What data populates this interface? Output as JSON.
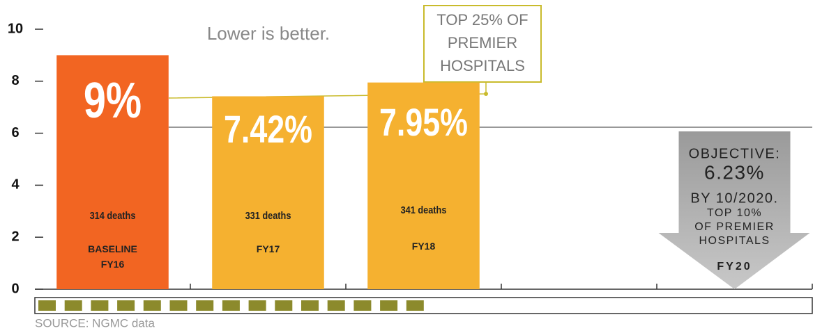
{
  "chart_data": {
    "type": "bar",
    "annotation": "Lower is better.",
    "categories": [
      "BASELINE FY16",
      "FY17",
      "FY18",
      null,
      "FY20"
    ],
    "values": [
      9,
      7.42,
      7.95,
      null,
      null
    ],
    "value_labels": [
      "9%",
      "7.42%",
      "7.95%",
      null,
      null
    ],
    "bar_notes": [
      "314 deaths",
      "331 deaths",
      "341 deaths",
      null,
      null
    ],
    "colors": [
      "#f26522",
      "#f5b130",
      "#f5b130",
      null,
      null
    ],
    "ylim": [
      0,
      10
    ],
    "yticks": [
      0,
      2,
      4,
      6,
      8,
      10
    ],
    "callout": [
      "TOP 25% OF",
      "PREMIER",
      "HOSPITALS"
    ],
    "objective": {
      "value": 6.23,
      "lines": [
        "OBJECTIVE:",
        "6.23%",
        "BY 10/2020.",
        "TOP 10%",
        "OF PREMIER",
        "HOSPITALS"
      ]
    },
    "source": "SOURCE: NGMC data"
  }
}
